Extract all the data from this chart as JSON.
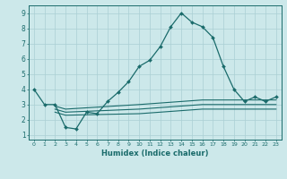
{
  "title": "",
  "xlabel": "Humidex (Indice chaleur)",
  "background_color": "#cce8ea",
  "line_color": "#1a6b6b",
  "xlim": [
    -0.5,
    23.5
  ],
  "ylim": [
    0.7,
    9.5
  ],
  "xticks": [
    0,
    1,
    2,
    3,
    4,
    5,
    6,
    7,
    8,
    9,
    10,
    11,
    12,
    13,
    14,
    15,
    16,
    17,
    18,
    19,
    20,
    21,
    22,
    23
  ],
  "yticks": [
    1,
    2,
    3,
    4,
    5,
    6,
    7,
    8,
    9
  ],
  "grid_color": "#aacfd4",
  "main_line": {
    "x": [
      0,
      1,
      2,
      3,
      4,
      5,
      6,
      7,
      8,
      9,
      10,
      11,
      12,
      13,
      14,
      15,
      16,
      17,
      18,
      19,
      20,
      21,
      22,
      23
    ],
    "y": [
      4.0,
      3.0,
      3.0,
      1.5,
      1.4,
      2.5,
      2.4,
      3.2,
      3.8,
      4.5,
      5.5,
      5.9,
      6.8,
      8.1,
      9.0,
      8.4,
      8.1,
      7.4,
      5.5,
      4.0,
      3.2,
      3.5,
      3.2,
      3.5
    ]
  },
  "flat_lines": [
    {
      "x": [
        2,
        3,
        10,
        11,
        12,
        13,
        14,
        15,
        16,
        17,
        18,
        19,
        20,
        21,
        22,
        23
      ],
      "y": [
        2.9,
        2.7,
        3.0,
        3.05,
        3.1,
        3.15,
        3.2,
        3.25,
        3.3,
        3.3,
        3.3,
        3.3,
        3.3,
        3.3,
        3.3,
        3.3
      ]
    },
    {
      "x": [
        2,
        3,
        10,
        11,
        12,
        13,
        14,
        15,
        16,
        17,
        18,
        19,
        20,
        21,
        22,
        23
      ],
      "y": [
        2.7,
        2.5,
        2.7,
        2.75,
        2.8,
        2.85,
        2.9,
        2.95,
        3.0,
        3.0,
        3.0,
        3.0,
        3.0,
        3.0,
        3.0,
        3.0
      ]
    },
    {
      "x": [
        2,
        3,
        10,
        11,
        12,
        13,
        14,
        15,
        16,
        17,
        18,
        19,
        20,
        21,
        22,
        23
      ],
      "y": [
        2.5,
        2.3,
        2.4,
        2.45,
        2.5,
        2.55,
        2.6,
        2.65,
        2.7,
        2.7,
        2.7,
        2.7,
        2.7,
        2.7,
        2.7,
        2.7
      ]
    }
  ]
}
